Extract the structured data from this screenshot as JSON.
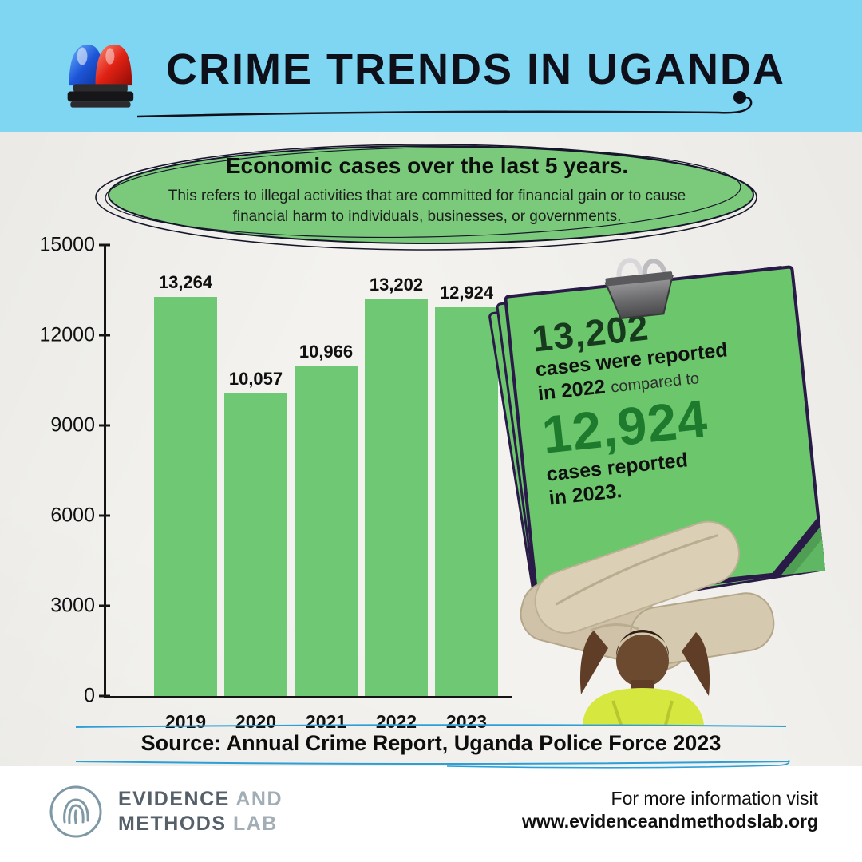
{
  "header": {
    "title": "CRIME TRENDS IN UGANDA"
  },
  "badge": {
    "title": "Economic cases over the last 5 years.",
    "subtitle": "This refers to illegal activities that are committed for financial gain or to cause financial harm to individuals, businesses, or governments."
  },
  "chart_data": {
    "type": "bar",
    "title": "Economic cases over the last 5 years.",
    "categories": [
      "2019",
      "2020",
      "2021",
      "2022",
      "2023"
    ],
    "values": [
      13264,
      10057,
      10966,
      13202,
      12924
    ],
    "value_labels": [
      "13,264",
      "10,057",
      "10,966",
      "13,202",
      "12,924"
    ],
    "yticks": [
      0,
      3000,
      6000,
      9000,
      12000,
      15000
    ],
    "ylim": [
      0,
      15000
    ],
    "xlabel": "",
    "ylabel": "",
    "grid": false,
    "legend": false,
    "bar_color": "#6fc873"
  },
  "note": {
    "big_number_1": "13,202",
    "line_1": "cases were reported",
    "line_2_bold": "in 2022",
    "line_2_light": "compared to",
    "big_number_2": "12,924",
    "line_3": "cases reported",
    "line_4": "in 2023."
  },
  "source": "Source: Annual Crime Report, Uganda Police Force 2023",
  "footer": {
    "logo_line1_a": "EVIDENCE",
    "logo_line1_b": "AND",
    "logo_line2_a": "METHODS",
    "logo_line2_b": "LAB",
    "info_line1": "For more information visit",
    "info_line2": "www.evidenceandmethodslab.org"
  },
  "colors": {
    "header_bg": "#7fd6f3",
    "bar_green": "#6fc873",
    "note_green": "#6cc76c",
    "note_border": "#2a1a47",
    "accent_blue": "#2d9fd6"
  }
}
